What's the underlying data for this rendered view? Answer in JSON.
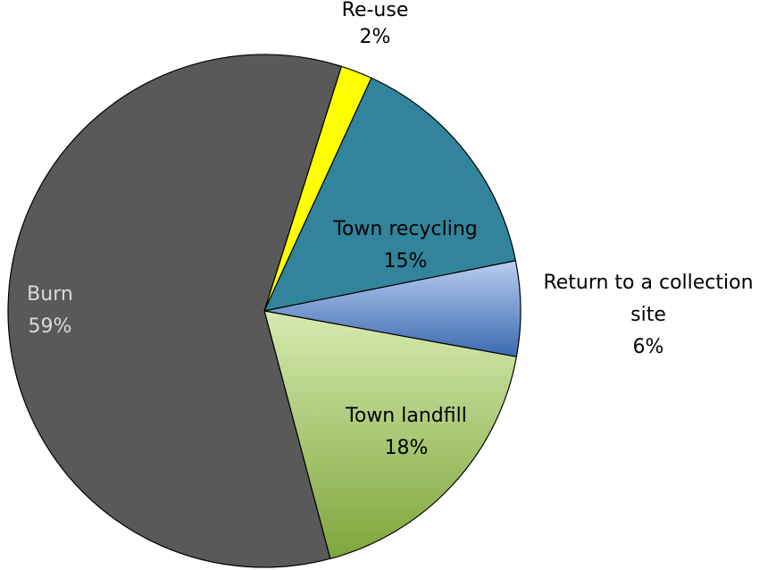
{
  "chart_data": {
    "type": "pie",
    "title": "",
    "slices": [
      {
        "label": "Re-use",
        "value": 2,
        "value_label": "2%",
        "color": "#ffff00",
        "label_color": "#000000"
      },
      {
        "label": "Town recycling",
        "value": 15,
        "value_label": "15%",
        "color": "#31849b",
        "label_color": "#000000"
      },
      {
        "label": "Return to a collection site",
        "label_lines": [
          "Return to a collection",
          "site"
        ],
        "value": 6,
        "value_label": "6%",
        "color": "#8eb4e3",
        "label_color": "#000000"
      },
      {
        "label": "Town landfill",
        "value": 18,
        "value_label": "18%",
        "color": "#c3d69b",
        "label_color": "#000000"
      },
      {
        "label": "Burn",
        "value": 59,
        "value_label": "59%",
        "color": "#595959",
        "label_color": "#d9d9d9"
      }
    ]
  }
}
